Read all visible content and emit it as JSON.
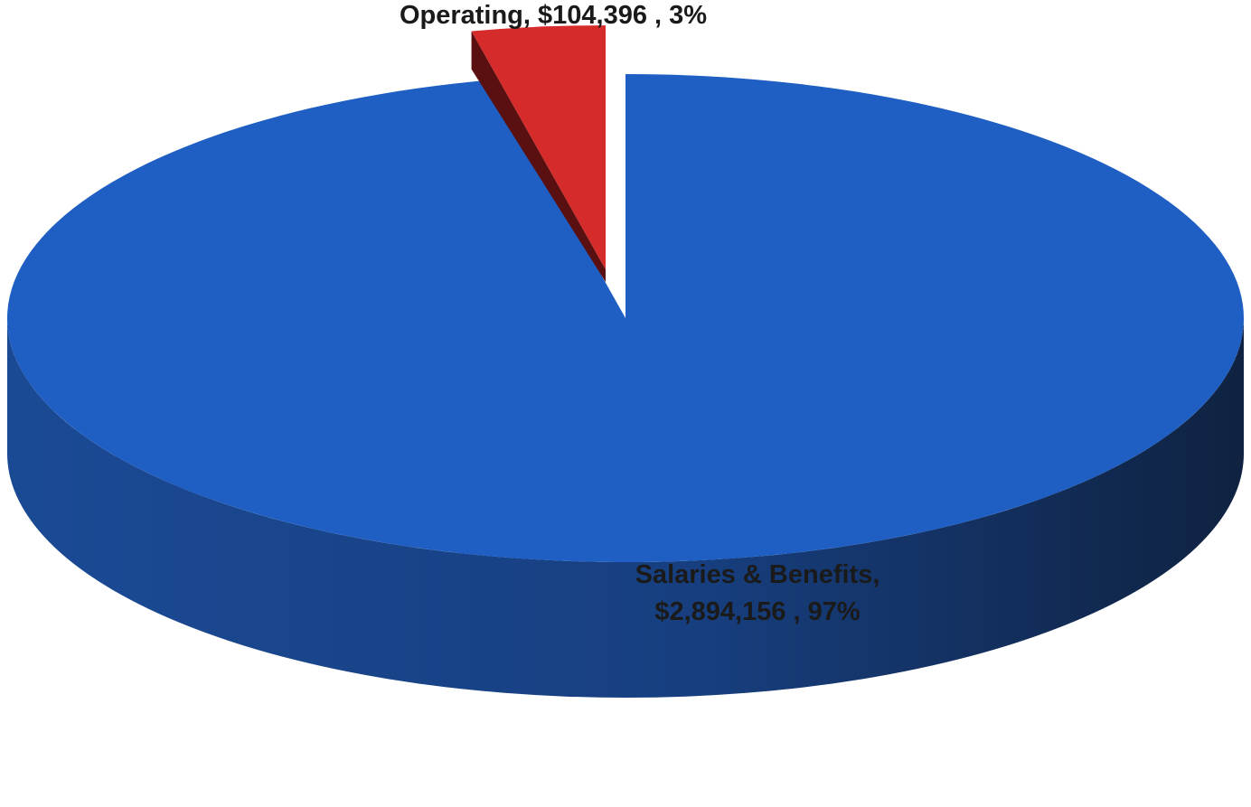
{
  "chart_data": {
    "type": "pie",
    "title": "",
    "style": "3d",
    "colors": {
      "Salaries & Benefits": "#1f5fc4",
      "Operating": "#d52b2b"
    },
    "slices": [
      {
        "category": "Operating",
        "value": 104396,
        "percent": 3,
        "color": "#d52b2b",
        "exploded": true,
        "label_line1": "Operating, $104,396 , 3%"
      },
      {
        "category": "Salaries & Benefits",
        "value": 2894156,
        "percent": 97,
        "color": "#1f5fc4",
        "exploded": false,
        "label_line1": "Salaries & Benefits,",
        "label_line2": "$2,894,156 , 97%"
      }
    ]
  }
}
